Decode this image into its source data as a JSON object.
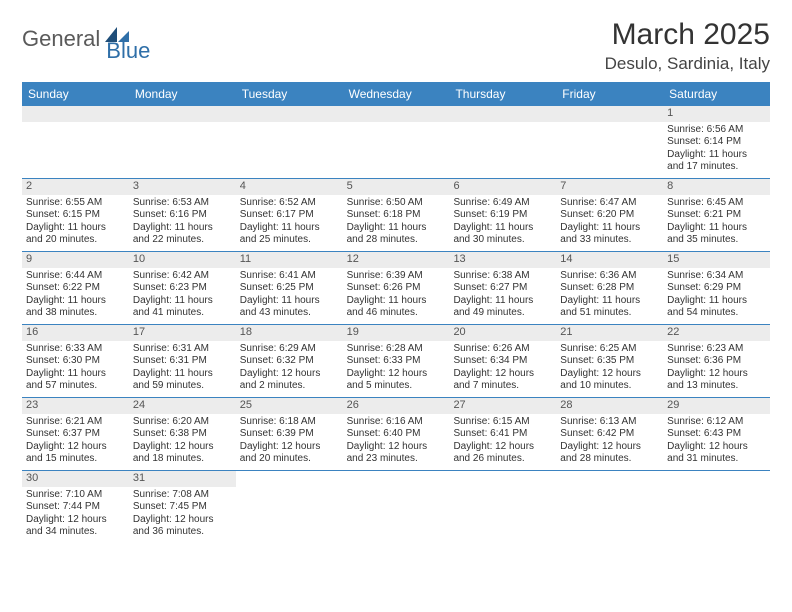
{
  "logo": {
    "general": "General",
    "blue": "Blue"
  },
  "title": "March 2025",
  "location": "Desulo, Sardinia, Italy",
  "weekdays": [
    "Sunday",
    "Monday",
    "Tuesday",
    "Wednesday",
    "Thursday",
    "Friday",
    "Saturday"
  ],
  "colors": {
    "header_bg": "#3b83c0",
    "daynum_bg": "#ececec",
    "row_border": "#3b83c0"
  },
  "weeks": [
    [
      {
        "day": "",
        "lines": []
      },
      {
        "day": "",
        "lines": []
      },
      {
        "day": "",
        "lines": []
      },
      {
        "day": "",
        "lines": []
      },
      {
        "day": "",
        "lines": []
      },
      {
        "day": "",
        "lines": []
      },
      {
        "day": "1",
        "lines": [
          "Sunrise: 6:56 AM",
          "Sunset: 6:14 PM",
          "Daylight: 11 hours and 17 minutes."
        ]
      }
    ],
    [
      {
        "day": "2",
        "lines": [
          "Sunrise: 6:55 AM",
          "Sunset: 6:15 PM",
          "Daylight: 11 hours and 20 minutes."
        ]
      },
      {
        "day": "3",
        "lines": [
          "Sunrise: 6:53 AM",
          "Sunset: 6:16 PM",
          "Daylight: 11 hours and 22 minutes."
        ]
      },
      {
        "day": "4",
        "lines": [
          "Sunrise: 6:52 AM",
          "Sunset: 6:17 PM",
          "Daylight: 11 hours and 25 minutes."
        ]
      },
      {
        "day": "5",
        "lines": [
          "Sunrise: 6:50 AM",
          "Sunset: 6:18 PM",
          "Daylight: 11 hours and 28 minutes."
        ]
      },
      {
        "day": "6",
        "lines": [
          "Sunrise: 6:49 AM",
          "Sunset: 6:19 PM",
          "Daylight: 11 hours and 30 minutes."
        ]
      },
      {
        "day": "7",
        "lines": [
          "Sunrise: 6:47 AM",
          "Sunset: 6:20 PM",
          "Daylight: 11 hours and 33 minutes."
        ]
      },
      {
        "day": "8",
        "lines": [
          "Sunrise: 6:45 AM",
          "Sunset: 6:21 PM",
          "Daylight: 11 hours and 35 minutes."
        ]
      }
    ],
    [
      {
        "day": "9",
        "lines": [
          "Sunrise: 6:44 AM",
          "Sunset: 6:22 PM",
          "Daylight: 11 hours and 38 minutes."
        ]
      },
      {
        "day": "10",
        "lines": [
          "Sunrise: 6:42 AM",
          "Sunset: 6:23 PM",
          "Daylight: 11 hours and 41 minutes."
        ]
      },
      {
        "day": "11",
        "lines": [
          "Sunrise: 6:41 AM",
          "Sunset: 6:25 PM",
          "Daylight: 11 hours and 43 minutes."
        ]
      },
      {
        "day": "12",
        "lines": [
          "Sunrise: 6:39 AM",
          "Sunset: 6:26 PM",
          "Daylight: 11 hours and 46 minutes."
        ]
      },
      {
        "day": "13",
        "lines": [
          "Sunrise: 6:38 AM",
          "Sunset: 6:27 PM",
          "Daylight: 11 hours and 49 minutes."
        ]
      },
      {
        "day": "14",
        "lines": [
          "Sunrise: 6:36 AM",
          "Sunset: 6:28 PM",
          "Daylight: 11 hours and 51 minutes."
        ]
      },
      {
        "day": "15",
        "lines": [
          "Sunrise: 6:34 AM",
          "Sunset: 6:29 PM",
          "Daylight: 11 hours and 54 minutes."
        ]
      }
    ],
    [
      {
        "day": "16",
        "lines": [
          "Sunrise: 6:33 AM",
          "Sunset: 6:30 PM",
          "Daylight: 11 hours and 57 minutes."
        ]
      },
      {
        "day": "17",
        "lines": [
          "Sunrise: 6:31 AM",
          "Sunset: 6:31 PM",
          "Daylight: 11 hours and 59 minutes."
        ]
      },
      {
        "day": "18",
        "lines": [
          "Sunrise: 6:29 AM",
          "Sunset: 6:32 PM",
          "Daylight: 12 hours and 2 minutes."
        ]
      },
      {
        "day": "19",
        "lines": [
          "Sunrise: 6:28 AM",
          "Sunset: 6:33 PM",
          "Daylight: 12 hours and 5 minutes."
        ]
      },
      {
        "day": "20",
        "lines": [
          "Sunrise: 6:26 AM",
          "Sunset: 6:34 PM",
          "Daylight: 12 hours and 7 minutes."
        ]
      },
      {
        "day": "21",
        "lines": [
          "Sunrise: 6:25 AM",
          "Sunset: 6:35 PM",
          "Daylight: 12 hours and 10 minutes."
        ]
      },
      {
        "day": "22",
        "lines": [
          "Sunrise: 6:23 AM",
          "Sunset: 6:36 PM",
          "Daylight: 12 hours and 13 minutes."
        ]
      }
    ],
    [
      {
        "day": "23",
        "lines": [
          "Sunrise: 6:21 AM",
          "Sunset: 6:37 PM",
          "Daylight: 12 hours and 15 minutes."
        ]
      },
      {
        "day": "24",
        "lines": [
          "Sunrise: 6:20 AM",
          "Sunset: 6:38 PM",
          "Daylight: 12 hours and 18 minutes."
        ]
      },
      {
        "day": "25",
        "lines": [
          "Sunrise: 6:18 AM",
          "Sunset: 6:39 PM",
          "Daylight: 12 hours and 20 minutes."
        ]
      },
      {
        "day": "26",
        "lines": [
          "Sunrise: 6:16 AM",
          "Sunset: 6:40 PM",
          "Daylight: 12 hours and 23 minutes."
        ]
      },
      {
        "day": "27",
        "lines": [
          "Sunrise: 6:15 AM",
          "Sunset: 6:41 PM",
          "Daylight: 12 hours and 26 minutes."
        ]
      },
      {
        "day": "28",
        "lines": [
          "Sunrise: 6:13 AM",
          "Sunset: 6:42 PM",
          "Daylight: 12 hours and 28 minutes."
        ]
      },
      {
        "day": "29",
        "lines": [
          "Sunrise: 6:12 AM",
          "Sunset: 6:43 PM",
          "Daylight: 12 hours and 31 minutes."
        ]
      }
    ],
    [
      {
        "day": "30",
        "lines": [
          "Sunrise: 7:10 AM",
          "Sunset: 7:44 PM",
          "Daylight: 12 hours and 34 minutes."
        ]
      },
      {
        "day": "31",
        "lines": [
          "Sunrise: 7:08 AM",
          "Sunset: 7:45 PM",
          "Daylight: 12 hours and 36 minutes."
        ]
      },
      {
        "day": "",
        "lines": []
      },
      {
        "day": "",
        "lines": []
      },
      {
        "day": "",
        "lines": []
      },
      {
        "day": "",
        "lines": []
      },
      {
        "day": "",
        "lines": []
      }
    ]
  ]
}
